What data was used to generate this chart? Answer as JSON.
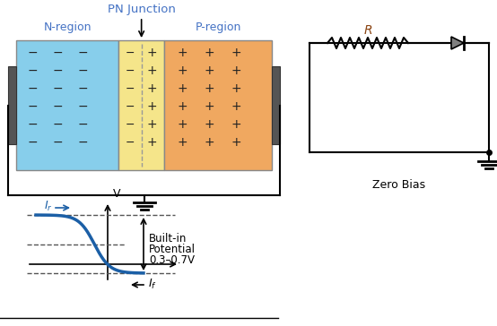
{
  "title": "PN Junction",
  "n_region_color": "#87CEEB",
  "depletion_color": "#F5E58A",
  "p_region_color": "#F0A860",
  "n_label": "N-region",
  "p_label": "P-region",
  "label_color": "#4472C4",
  "title_color": "#4472C4",
  "curve_color": "#1B5FA6",
  "dash_color": "#555555",
  "zero_bias_text": "Zero Bias",
  "built_in_line1": "Built-in",
  "built_in_line2": "Potential",
  "built_in_line3": "0.3–0.7V",
  "r_label_color": "#8B4513",
  "diode_fill": "#808080",
  "pad_color": "#555555",
  "wire_color": "#000000"
}
